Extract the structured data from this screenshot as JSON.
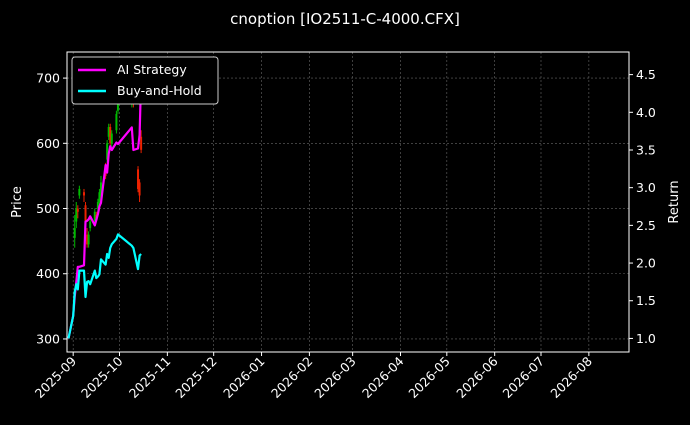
{
  "chart_data": {
    "type": "line",
    "title": "cnoption [IO2511-C-4000.CFX]",
    "ylabel_left": "Price",
    "ylabel_right": "Return",
    "ylim_left": [
      280,
      740
    ],
    "ylim_right": [
      0.82,
      4.8
    ],
    "xlim": [
      "2025-08-28",
      "2026-08-27"
    ],
    "yticks_left": [
      300,
      400,
      500,
      600,
      700
    ],
    "yticks_right": [
      1.0,
      1.5,
      2.0,
      2.5,
      3.0,
      3.5,
      4.0,
      4.5
    ],
    "xticks": [
      "2025-09",
      "2025-10",
      "2025-11",
      "2025-12",
      "2026-01",
      "2026-02",
      "2026-03",
      "2026-04",
      "2026-05",
      "2026-06",
      "2026-07",
      "2026-08"
    ],
    "grid": true,
    "legend_position": "top-left",
    "colors": {
      "background": "#000000",
      "ai_strategy": "#ff00ff",
      "buy_and_hold": "#00ffff",
      "candle_up": "#00bb00",
      "candle_down": "#ee2200",
      "grid": "#666666"
    },
    "series": [
      {
        "name": "AI Strategy",
        "axis": "right",
        "x": [
          "2025-08-29",
          "2025-09-01",
          "2025-09-02",
          "2025-09-03",
          "2025-09-04",
          "2025-09-05",
          "2025-09-08",
          "2025-09-09",
          "2025-09-10",
          "2025-09-11",
          "2025-09-12",
          "2025-09-15",
          "2025-09-16",
          "2025-09-17",
          "2025-09-18",
          "2025-09-19",
          "2025-09-22",
          "2025-09-23",
          "2025-09-24",
          "2025-09-25",
          "2025-09-26",
          "2025-09-29",
          "2025-09-30",
          "2025-10-09",
          "2025-10-10",
          "2025-10-13",
          "2025-10-14",
          "2025-10-15"
        ],
        "values": [
          1.0,
          1.3,
          1.55,
          1.75,
          1.95,
          1.95,
          1.97,
          2.55,
          2.56,
          2.58,
          2.62,
          2.5,
          2.57,
          2.65,
          2.75,
          2.8,
          3.3,
          3.2,
          3.45,
          3.55,
          3.5,
          3.6,
          3.58,
          3.8,
          3.5,
          3.52,
          3.7,
          4.45
        ]
      },
      {
        "name": "Buy-and-Hold",
        "axis": "right",
        "x": [
          "2025-08-29",
          "2025-09-01",
          "2025-09-02",
          "2025-09-03",
          "2025-09-04",
          "2025-09-05",
          "2025-09-08",
          "2025-09-09",
          "2025-09-10",
          "2025-09-11",
          "2025-09-12",
          "2025-09-15",
          "2025-09-16",
          "2025-09-17",
          "2025-09-18",
          "2025-09-19",
          "2025-09-22",
          "2025-09-23",
          "2025-09-24",
          "2025-09-25",
          "2025-09-26",
          "2025-09-29",
          "2025-09-30",
          "2025-10-09",
          "2025-10-10",
          "2025-10-13",
          "2025-10-14",
          "2025-10-15"
        ],
        "values": [
          1.0,
          1.3,
          1.62,
          1.72,
          1.65,
          1.9,
          1.9,
          1.55,
          1.75,
          1.76,
          1.72,
          1.9,
          1.8,
          1.82,
          1.85,
          2.05,
          1.98,
          2.12,
          2.07,
          2.2,
          2.25,
          2.32,
          2.38,
          2.23,
          2.2,
          1.92,
          2.1,
          2.12
        ]
      }
    ],
    "candles": {
      "axis": "left",
      "x": [
        "2025-09-02",
        "2025-09-03",
        "2025-09-04",
        "2025-09-05",
        "2025-09-08",
        "2025-09-09",
        "2025-09-10",
        "2025-09-11",
        "2025-09-12",
        "2025-09-15",
        "2025-09-16",
        "2025-09-17",
        "2025-09-18",
        "2025-09-19",
        "2025-09-22",
        "2025-09-23",
        "2025-09-24",
        "2025-09-25",
        "2025-09-26",
        "2025-09-29",
        "2025-09-30",
        "2025-10-09",
        "2025-10-10",
        "2025-10-13",
        "2025-10-14",
        "2025-10-15"
      ],
      "open": [
        455,
        480,
        500,
        520,
        525,
        505,
        460,
        445,
        470,
        480,
        490,
        500,
        510,
        520,
        565,
        575,
        610,
        625,
        600,
        620,
        650,
        660,
        680,
        560,
        540,
        610
      ],
      "close": [
        470,
        500,
        495,
        530,
        520,
        480,
        445,
        460,
        480,
        495,
        485,
        510,
        525,
        540,
        550,
        600,
        625,
        600,
        615,
        645,
        665,
        680,
        660,
        530,
        520,
        590
      ],
      "high": [
        490,
        510,
        505,
        535,
        530,
        510,
        470,
        465,
        485,
        500,
        495,
        515,
        530,
        550,
        570,
        605,
        630,
        630,
        620,
        650,
        670,
        690,
        690,
        565,
        545,
        620
      ],
      "low": [
        440,
        470,
        485,
        515,
        510,
        475,
        440,
        440,
        465,
        475,
        480,
        495,
        505,
        515,
        545,
        570,
        605,
        595,
        595,
        615,
        645,
        655,
        655,
        525,
        510,
        585
      ]
    }
  }
}
